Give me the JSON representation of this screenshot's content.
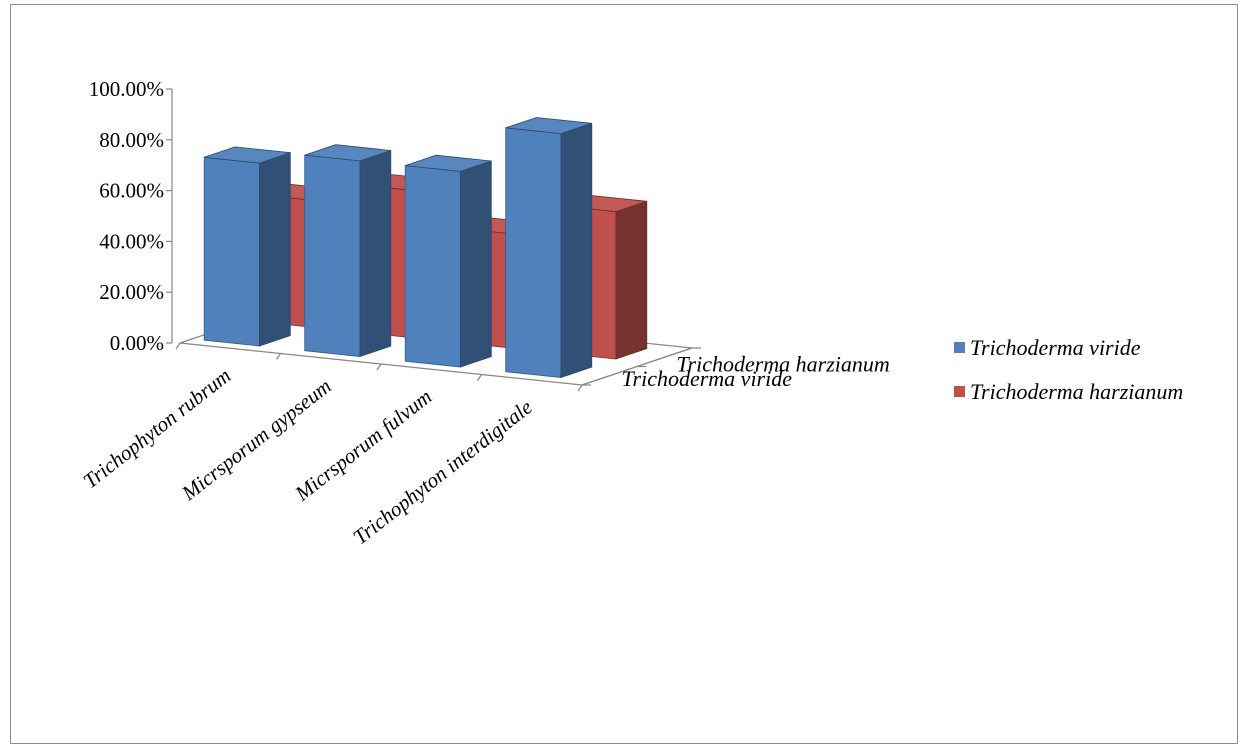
{
  "chart_data": {
    "type": "bar",
    "title": "",
    "xlabel": "",
    "ylabel": "",
    "ylim": [
      0,
      1
    ],
    "yticks": [
      "0.00%",
      "20.00%",
      "40.00%",
      "60.00%",
      "80.00%",
      "100.00%"
    ],
    "categories": [
      "Trichophyton rubrum",
      "Micrsporum gypseum",
      "Micrsporum fulvum",
      "Trichophyton interdigitale"
    ],
    "series": [
      {
        "name": "Trichoderma viride",
        "values": [
          0.72,
          0.77,
          0.77,
          0.96
        ],
        "color": "#4f81bd"
      },
      {
        "name": "Trichoderma harzianum",
        "values": [
          0.5,
          0.58,
          0.45,
          0.58
        ],
        "color": "#c0504d"
      }
    ],
    "depth_labels": [
      "Trichoderma harzianum",
      "Trichoderma viride"
    ],
    "legend_position": "right",
    "grid": false,
    "projection": "3d"
  }
}
